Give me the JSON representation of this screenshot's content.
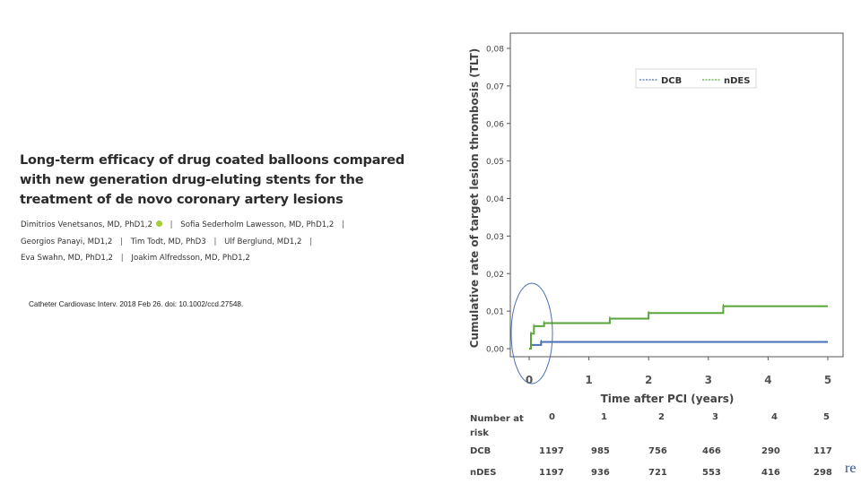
{
  "paper": {
    "title": "Long-term efficacy of drug coated balloons compared with new generation drug-eluting stents for the treatment of de novo coronary artery lesions",
    "author_lines": [
      [
        "Dimitrios Venetsanos, MD, PhD1,2",
        "Sofia Sederholm Lawesson, MD, PhD1,2"
      ],
      [
        "Georgios Panayi, MD1,2",
        "Tim Todt, MD, PhD3",
        "Ulf Berglund, MD1,2"
      ],
      [
        "Eva Swahn, MD, PhD1,2",
        "Joakim Alfredsson, MD, PhD1,2"
      ]
    ],
    "citation": "Catheter Cardiovasc Interv. 2018 Feb 26. doi: 10.1002/ccd.27548."
  },
  "chart_data": {
    "type": "line",
    "xlabel": "Time after PCI (years)",
    "ylabel": "Cumulative rate of target lesion thrombosis (TLT)",
    "xlim": [
      0,
      5
    ],
    "ylim": [
      0,
      0.08
    ],
    "x_ticks": [
      "0",
      "1",
      "2",
      "3",
      "4",
      "5"
    ],
    "y_ticks": [
      "0,00",
      "0,01",
      "0,02",
      "0,03",
      "0,04",
      "0,05",
      "0,06",
      "0,07",
      "0,08"
    ],
    "grid": false,
    "legend_position": "top-right",
    "series": [
      {
        "name": "DCB",
        "color": "#4a6fb5",
        "step": true,
        "x": [
          0,
          0.03,
          0.2,
          5
        ],
        "y": [
          0,
          0.001,
          0.0018,
          0.0018
        ]
      },
      {
        "name": "nDES",
        "color": "#5aa53a",
        "step": true,
        "x": [
          0,
          0.03,
          0.08,
          0.25,
          1.35,
          2.0,
          3.25,
          5
        ],
        "y": [
          0,
          0.004,
          0.006,
          0.0068,
          0.008,
          0.0095,
          0.0113,
          0.0113
        ]
      }
    ],
    "annotations": [
      {
        "type": "ellipse",
        "color": "#4a6fb5",
        "around": "early period 0–0.3 years"
      }
    ]
  },
  "risk_table": {
    "header": "Number at risk",
    "timepoints": [
      "0",
      "1",
      "2",
      "3",
      "4",
      "5"
    ],
    "rows": [
      {
        "label": "DCB",
        "values": [
          "1197",
          "985",
          "756",
          "466",
          "290",
          "117"
        ]
      },
      {
        "label": "nDES",
        "values": [
          "1197",
          "936",
          "721",
          "553",
          "416",
          "298"
        ]
      }
    ]
  },
  "corner_text": "re"
}
